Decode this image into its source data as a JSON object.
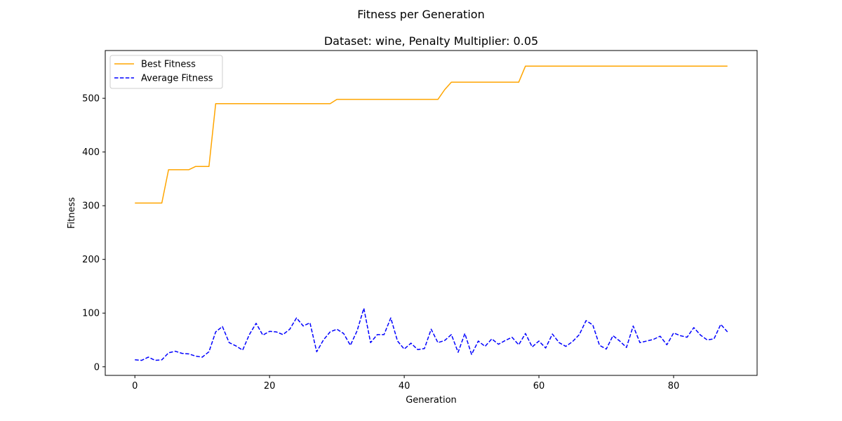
{
  "figure": {
    "suptitle": "Fitness per Generation"
  },
  "chart_data": {
    "type": "line",
    "title": "Dataset: wine, Penalty Multiplier: 0.05",
    "xlabel": "Generation",
    "ylabel": "Fitness",
    "xlim": [
      -4.4,
      92.4
    ],
    "ylim": [
      -16,
      589
    ],
    "xticks": [
      0,
      20,
      40,
      60,
      80
    ],
    "yticks": [
      0,
      100,
      200,
      300,
      400,
      500
    ],
    "grid": false,
    "legend_position": "upper-left",
    "series": [
      {
        "name": "Best Fitness",
        "color": "#ffa500",
        "style": "solid",
        "x": [
          0,
          1,
          2,
          3,
          4,
          5,
          6,
          7,
          8,
          9,
          10,
          11,
          12,
          13,
          14,
          15,
          16,
          17,
          18,
          19,
          20,
          21,
          22,
          23,
          24,
          25,
          26,
          27,
          28,
          29,
          30,
          31,
          32,
          33,
          34,
          35,
          36,
          37,
          38,
          39,
          40,
          41,
          42,
          43,
          44,
          45,
          46,
          47,
          48,
          49,
          50,
          51,
          52,
          53,
          54,
          55,
          56,
          57,
          58,
          59,
          60,
          61,
          62,
          63,
          64,
          65,
          66,
          67,
          68,
          69,
          70,
          71,
          72,
          73,
          74,
          75,
          76,
          77,
          78,
          79,
          80,
          81,
          82,
          83,
          84,
          85,
          86,
          87,
          88
        ],
        "values": [
          305,
          305,
          305,
          305,
          305,
          367,
          367,
          367,
          367,
          373,
          373,
          373,
          490,
          490,
          490,
          490,
          490,
          490,
          490,
          490,
          490,
          490,
          490,
          490,
          490,
          490,
          490,
          490,
          490,
          490,
          498,
          498,
          498,
          498,
          498,
          498,
          498,
          498,
          498,
          498,
          498,
          498,
          498,
          498,
          498,
          498,
          516,
          530,
          530,
          530,
          530,
          530,
          530,
          530,
          530,
          530,
          530,
          530,
          560,
          560,
          560,
          560,
          560,
          560,
          560,
          560,
          560,
          560,
          560,
          560,
          560,
          560,
          560,
          560,
          560,
          560,
          560,
          560,
          560,
          560,
          560,
          560,
          560,
          560,
          560,
          560,
          560,
          560,
          560
        ]
      },
      {
        "name": "Average Fitness",
        "color": "#0000ff",
        "style": "dashed",
        "x": [
          0,
          1,
          2,
          3,
          4,
          5,
          6,
          7,
          8,
          9,
          10,
          11,
          12,
          13,
          14,
          15,
          16,
          17,
          18,
          19,
          20,
          21,
          22,
          23,
          24,
          25,
          26,
          27,
          28,
          29,
          30,
          31,
          32,
          33,
          34,
          35,
          36,
          37,
          38,
          39,
          40,
          41,
          42,
          43,
          44,
          45,
          46,
          47,
          48,
          49,
          50,
          51,
          52,
          53,
          54,
          55,
          56,
          57,
          58,
          59,
          60,
          61,
          62,
          63,
          64,
          65,
          66,
          67,
          68,
          69,
          70,
          71,
          72,
          73,
          74,
          75,
          76,
          77,
          78,
          79,
          80,
          81,
          82,
          83,
          84,
          85,
          86,
          87,
          88
        ],
        "values": [
          13,
          12,
          18,
          12,
          13,
          26,
          29,
          25,
          24,
          20,
          18,
          28,
          65,
          75,
          45,
          39,
          31,
          60,
          81,
          59,
          66,
          65,
          60,
          70,
          91,
          76,
          82,
          28,
          50,
          65,
          70,
          62,
          40,
          67,
          109,
          45,
          60,
          60,
          91,
          48,
          33,
          44,
          32,
          34,
          70,
          45,
          49,
          60,
          27,
          62,
          23,
          48,
          38,
          52,
          42,
          49,
          55,
          41,
          62,
          37,
          48,
          35,
          61,
          45,
          38,
          47,
          60,
          86,
          78,
          40,
          33,
          58,
          48,
          36,
          76,
          45,
          48,
          51,
          57,
          41,
          63,
          58,
          55,
          73,
          59,
          50,
          52,
          79,
          65
        ]
      }
    ]
  }
}
